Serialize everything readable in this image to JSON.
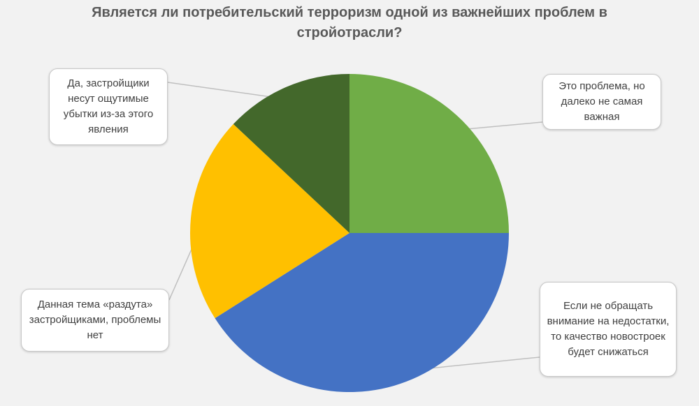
{
  "chart_data": {
    "type": "pie",
    "title": "Является ли потребительский терроризм одной из важнейших проблем в стройотрасли?",
    "start_angle_deg": 0,
    "direction": "clockwise",
    "legend": "none",
    "slices": [
      {
        "label": "Это проблема, но далеко не самая важная",
        "value": 25,
        "color": "#70ad47"
      },
      {
        "label": "Если не обращать внимание на недостатки, то качество новостроек будет снижаться",
        "value": 41,
        "color": "#4472c4"
      },
      {
        "label": "Данная тема «раздута» застройщиками, проблемы нет",
        "value": 21,
        "color": "#ffc000"
      },
      {
        "label": "Да, застройщики несут ощутимые убытки из-за этого явления",
        "value": 13,
        "color": "#43682b"
      }
    ]
  }
}
